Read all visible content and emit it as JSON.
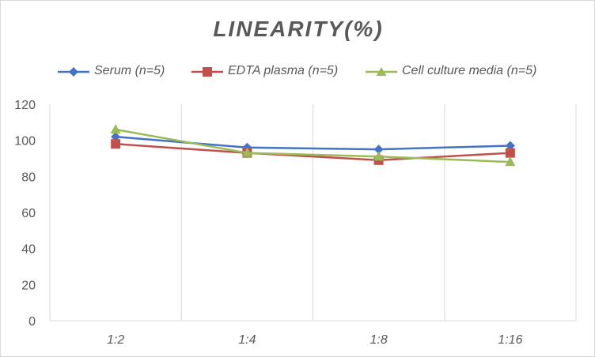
{
  "chart_data": {
    "type": "line",
    "title": "LINEARITY(%)",
    "xlabel": "",
    "ylabel": "",
    "categories": [
      "1:2",
      "1:4",
      "1:8",
      "1:16"
    ],
    "ylim": [
      0,
      120
    ],
    "yticks": [
      "0",
      "20",
      "40",
      "60",
      "80",
      "100",
      "120"
    ],
    "grid": "vertical",
    "legend_position": "top",
    "series": [
      {
        "name": "Serum (n=5)",
        "color": "#4472c4",
        "marker": "diamond",
        "values": [
          102,
          96,
          95,
          97
        ]
      },
      {
        "name": "EDTA plasma (n=5)",
        "color": "#c0504d",
        "marker": "square",
        "values": [
          98,
          93,
          89,
          93
        ]
      },
      {
        "name": "Cell culture media (n=5)",
        "color": "#9bbb59",
        "marker": "triangle",
        "values": [
          106,
          93,
          91,
          88
        ]
      }
    ]
  }
}
